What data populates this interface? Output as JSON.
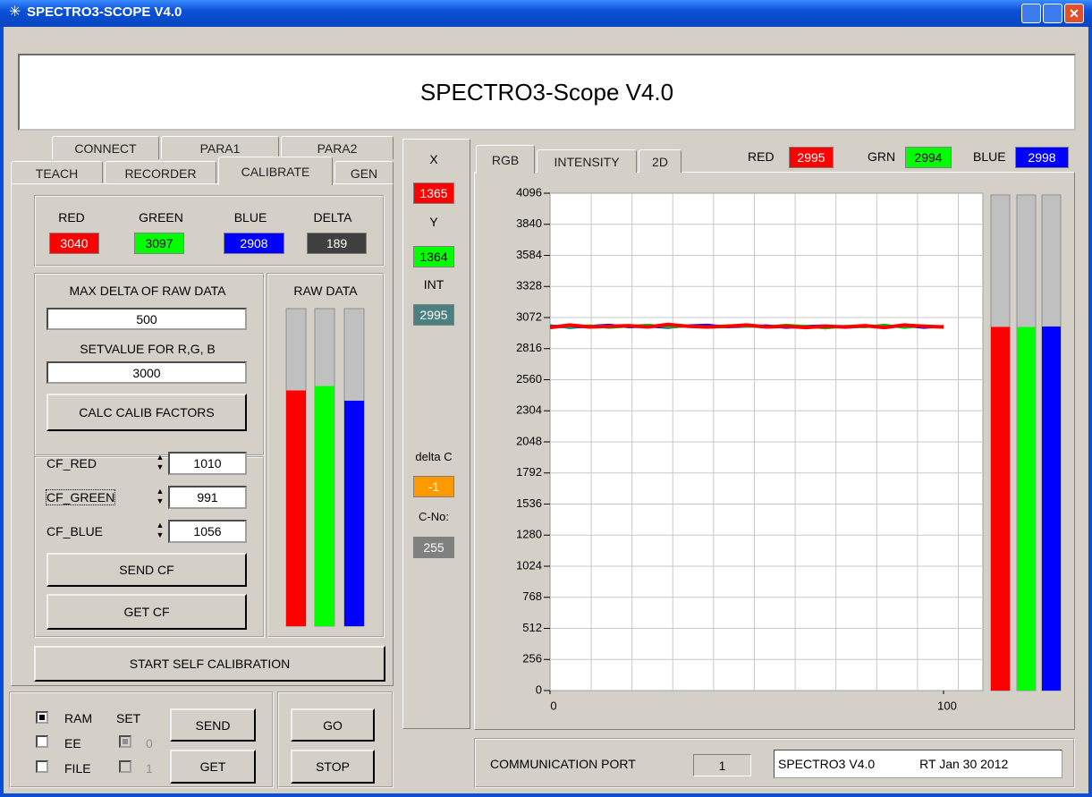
{
  "window": {
    "title": "SPECTRO3-SCOPE V4.0"
  },
  "header": {
    "title": "SPECTRO3-Scope V4.0"
  },
  "tabs": {
    "row1": [
      "CONNECT",
      "PARA1",
      "PARA2"
    ],
    "row2": [
      "TEACH",
      "RECORDER",
      "CALIBRATE",
      "GEN"
    ]
  },
  "calibrate": {
    "channels": [
      {
        "label": "RED",
        "value": 3040,
        "color": "#ff0000"
      },
      {
        "label": "GREEN",
        "value": 3097,
        "color": "#00ff00"
      },
      {
        "label": "BLUE",
        "value": 2908,
        "color": "#0000ff"
      },
      {
        "label": "DELTA",
        "value": 189,
        "color": "#404040"
      }
    ],
    "max_delta": {
      "label": "MAX DELTA OF RAW DATA",
      "value": 500
    },
    "setvalue": {
      "label": "SETVALUE FOR R,G, B",
      "value": 3000
    },
    "calc_button": "CALC CALIB FACTORS",
    "raw_data_title": "RAW DATA",
    "factors": [
      {
        "label": "CF_RED",
        "value": 1010
      },
      {
        "label": "CF_GREEN",
        "value": 991
      },
      {
        "label": "CF_BLUE",
        "value": 1056
      }
    ],
    "send_cf": "SEND CF",
    "get_cf": "GET CF",
    "self_cal": "START SELF CALIBRATION"
  },
  "bottom": {
    "checks": [
      "RAM",
      "EE",
      "FILE"
    ],
    "set_label": "SET",
    "set_options": [
      "0",
      "1"
    ],
    "send": "SEND",
    "get": "GET",
    "go": "GO",
    "stop": "STOP"
  },
  "side": {
    "x": {
      "label": "X",
      "value": 1365
    },
    "y": {
      "label": "Y",
      "value": 1364
    },
    "int": {
      "label": "INT",
      "value": 2995
    },
    "delta_c": {
      "label": "delta C",
      "value": -1
    },
    "c_no": {
      "label": "C-No:",
      "value": 255
    }
  },
  "chart_tabs": [
    "RGB",
    "INTENSITY",
    "2D"
  ],
  "readout": [
    {
      "label": "RED",
      "value": 2995,
      "color": "#ff0000"
    },
    {
      "label": "GRN",
      "value": 2994,
      "color": "#00ff00"
    },
    {
      "label": "BLUE",
      "value": 2998,
      "color": "#0000ff"
    }
  ],
  "chart_data": {
    "type": "line",
    "x": [
      0,
      5,
      10,
      15,
      20,
      25,
      30,
      35,
      40,
      45,
      50,
      55,
      60,
      65,
      70,
      75,
      80,
      85,
      90,
      95,
      100
    ],
    "series": [
      {
        "name": "RED",
        "color": "#ff0000",
        "values": [
          2990,
          3010,
          2995,
          3000,
          3005,
          2995,
          3015,
          3000,
          2995,
          3000,
          3010,
          2995,
          3000,
          2990,
          3000,
          2995,
          3005,
          2990,
          3010,
          3000,
          2995
        ]
      },
      {
        "name": "GRN",
        "color": "#00c000",
        "values": [
          3000,
          2995,
          3005,
          2990,
          3000,
          3010,
          2995,
          3000,
          2990,
          3005,
          3000,
          2995,
          3010,
          3000,
          2985,
          3000,
          2995,
          3010,
          2990,
          3005,
          2990
        ]
      },
      {
        "name": "BLUE",
        "color": "#0000ff",
        "values": [
          3005,
          2990,
          3000,
          3010,
          2995,
          3000,
          2990,
          3005,
          3010,
          2995,
          3000,
          3005,
          2990,
          3000,
          3005,
          2990,
          3000,
          2995,
          3005,
          2990,
          3000
        ]
      }
    ],
    "xlim": [
      0,
      110
    ],
    "ylim": [
      0,
      4096
    ],
    "xticks": [
      0,
      100
    ],
    "yticks": [
      0,
      256,
      512,
      768,
      1024,
      1280,
      1536,
      1792,
      2048,
      2304,
      2560,
      2816,
      3072,
      3328,
      3584,
      3840,
      4096
    ],
    "grid": true
  },
  "status": {
    "label": "COMMUNICATION PORT",
    "port": 1,
    "device": "SPECTRO3 V4.0",
    "build": "RT Jan 30 2012"
  }
}
